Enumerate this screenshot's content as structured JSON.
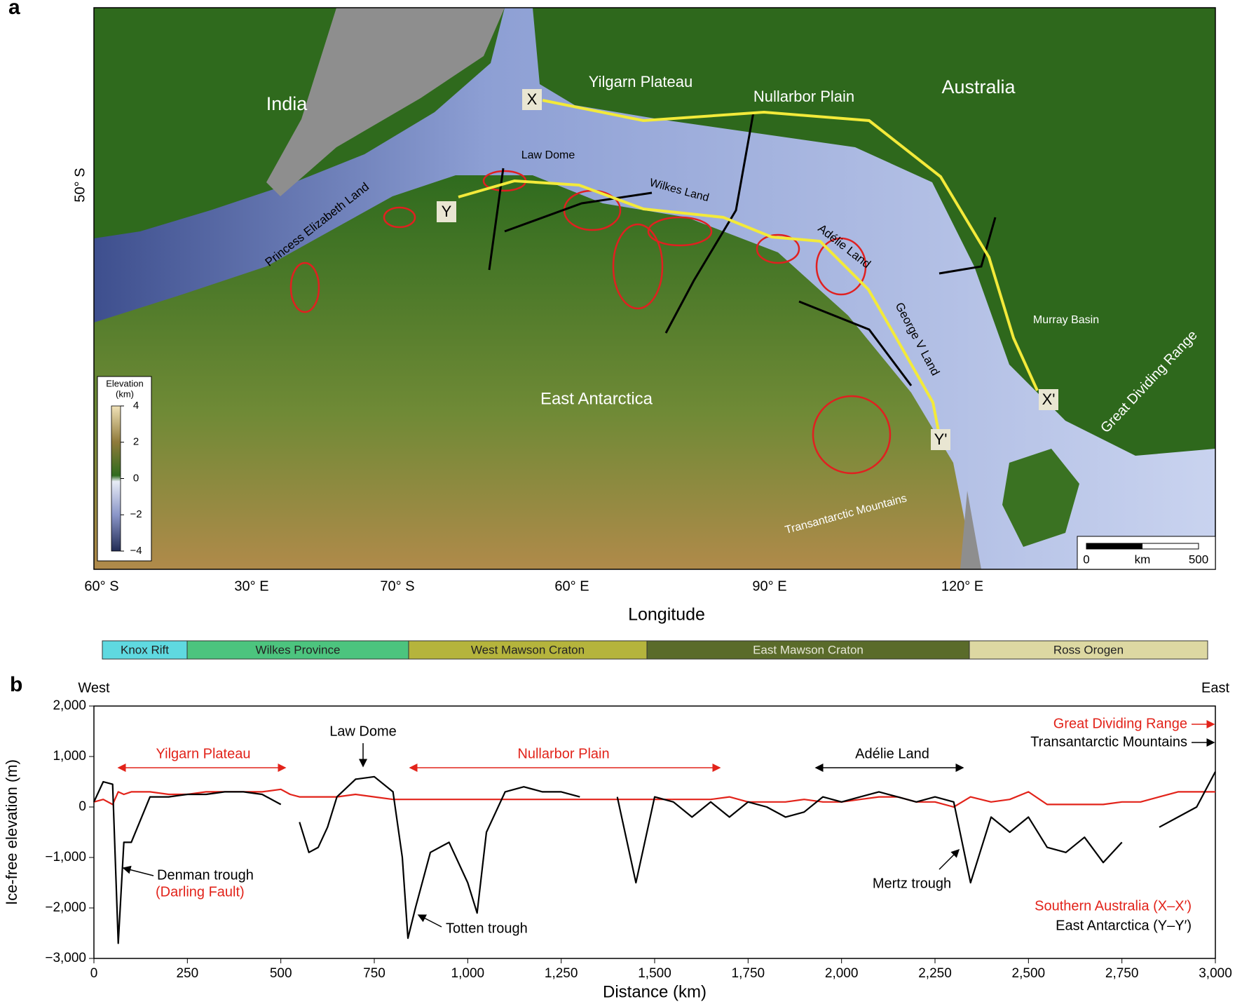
{
  "map": {
    "panel_label": "a",
    "labels": [
      {
        "text": "India"
      },
      {
        "text": "Yilgarn Plateau"
      },
      {
        "text": "Nullarbor Plain"
      },
      {
        "text": "Australia"
      },
      {
        "text": "Law Dome"
      },
      {
        "text": "Wilkes Land"
      },
      {
        "text": "Princess Elizabeth Land"
      },
      {
        "text": "Adélie Land"
      },
      {
        "text": "George V Land"
      },
      {
        "text": "Murray Basin"
      },
      {
        "text": "Great Dividing Range"
      },
      {
        "text": "East Antarctica"
      },
      {
        "text": "Transantarctic Mountains"
      }
    ],
    "points": [
      "X",
      "X'",
      "Y",
      "Y'"
    ],
    "lat_label": "50° S",
    "lon_labels": [
      "60° S",
      "30° E",
      "70° S",
      "60° E",
      "90° E",
      "120° E"
    ],
    "xlabel": "Longitude",
    "colorbar": {
      "title": [
        "Elevation",
        "(km)"
      ],
      "lim": [
        -4,
        4
      ],
      "ticks": [
        4,
        2,
        0,
        {
          "value": -2,
          "label": "−2"
        },
        {
          "value": -4,
          "label": "−4"
        }
      ]
    },
    "scalebar": {
      "ticks": [
        0,
        500
      ],
      "unit": "km"
    }
  },
  "provinces": [
    {
      "name": "Knox Rift",
      "color": "#5fd9e0"
    },
    {
      "name": "Wilkes Province",
      "color": "#4cc47e"
    },
    {
      "name": "West Mawson Craton",
      "color": "#b5b43c"
    },
    {
      "name": "East Mawson Craton",
      "color": "#5a6b2a"
    },
    {
      "name": "Ross Orogen",
      "color": "#ddd8a2"
    }
  ],
  "chart_data": {
    "type": "line",
    "panel_label": "b",
    "west_label": "West",
    "east_label": "East",
    "xlabel": "Distance (km)",
    "ylabel": "Ice-free elevation (m)",
    "xlim": [
      0,
      3000
    ],
    "xticks": [
      0,
      250,
      500,
      750,
      {
        "value": 1000,
        "label": "1,000"
      },
      {
        "value": 1250,
        "label": "1,250"
      },
      {
        "value": 1500,
        "label": "1,500"
      },
      {
        "value": 1750,
        "label": "1,750"
      },
      {
        "value": 2000,
        "label": "2,000"
      },
      {
        "value": 2250,
        "label": "2,250"
      },
      {
        "value": 2500,
        "label": "2,500"
      },
      {
        "value": 2750,
        "label": "2,750"
      },
      {
        "value": 3000,
        "label": "3,000"
      }
    ],
    "ylim": [
      -3000,
      2000
    ],
    "yticks": [
      {
        "value": 2000,
        "label": "2,000"
      },
      {
        "value": 1000,
        "label": "1,000"
      },
      0,
      {
        "value": -1000,
        "label": "−1,000"
      },
      {
        "value": -2000,
        "label": "−2,000"
      },
      {
        "value": -3000,
        "label": "−3,000"
      }
    ],
    "x": [
      0,
      25,
      50,
      65,
      80,
      100,
      150,
      200,
      250,
      300,
      350,
      400,
      450,
      500,
      525,
      550,
      575,
      600,
      625,
      650,
      700,
      750,
      800,
      825,
      840,
      860,
      900,
      950,
      1000,
      1025,
      1050,
      1100,
      1150,
      1200,
      1250,
      1300,
      1350,
      1400,
      1450,
      1500,
      1550,
      1600,
      1650,
      1700,
      1750,
      1800,
      1850,
      1900,
      1950,
      2000,
      2050,
      2100,
      2150,
      2200,
      2250,
      2300,
      2345,
      2400,
      2450,
      2500,
      2550,
      2600,
      2650,
      2700,
      2750,
      2800,
      2850,
      2900,
      2950,
      3000
    ],
    "series": [
      {
        "name": "Southern Australia (X–X′)",
        "color": "#e2231a",
        "values": [
          100,
          150,
          50,
          300,
          250,
          300,
          300,
          250,
          250,
          300,
          300,
          300,
          300,
          350,
          250,
          200,
          200,
          200,
          200,
          200,
          250,
          200,
          150,
          150,
          150,
          150,
          150,
          150,
          150,
          150,
          150,
          150,
          150,
          150,
          150,
          150,
          150,
          150,
          150,
          150,
          150,
          150,
          150,
          200,
          100,
          100,
          100,
          150,
          100,
          100,
          150,
          200,
          200,
          100,
          100,
          0,
          200,
          100,
          150,
          300,
          50,
          50,
          50,
          50,
          100,
          100,
          200,
          300,
          300,
          300
        ]
      },
      {
        "name": "East Antarctica (Y–Y′)",
        "color": "#000000",
        "values": [
          100,
          500,
          450,
          -2700,
          -700,
          -700,
          200,
          200,
          250,
          250,
          300,
          300,
          250,
          50,
          null,
          -300,
          -900,
          -800,
          -400,
          200,
          550,
          600,
          300,
          -1000,
          -2600,
          -2000,
          -900,
          -700,
          -1500,
          -2100,
          -500,
          300,
          400,
          300,
          300,
          200,
          null,
          200,
          -1500,
          200,
          100,
          -200,
          100,
          -200,
          100,
          0,
          -200,
          -100,
          200,
          100,
          200,
          300,
          200,
          100,
          200,
          100,
          -1500,
          -200,
          -500,
          -200,
          -800,
          -900,
          -600,
          -1100,
          -700,
          null,
          -400,
          -200,
          0,
          700
        ]
      }
    ],
    "annotations": [
      {
        "text": "Yilgarn Plateau",
        "color": "#e2231a"
      },
      {
        "text": "Law Dome",
        "color": "#000000"
      },
      {
        "text": "Nullarbor Plain",
        "color": "#e2231a"
      },
      {
        "text": "Adélie Land",
        "color": "#000000"
      },
      {
        "text": "Great Dividing Range",
        "color": "#e2231a"
      },
      {
        "text": "Transantarctic Mountains",
        "color": "#000000"
      },
      {
        "text": "Denman trough",
        "color": "#000000"
      },
      {
        "text": "(Darling Fault)",
        "color": "#e2231a"
      },
      {
        "text": "Totten trough",
        "color": "#000000"
      },
      {
        "text": "Mertz trough",
        "color": "#000000"
      }
    ]
  }
}
